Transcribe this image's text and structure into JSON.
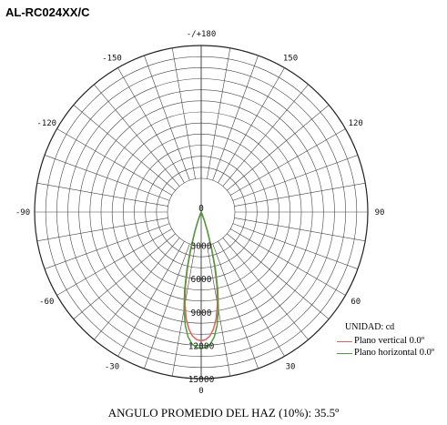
{
  "header": {
    "title": "AL-RC024XX/C"
  },
  "chart_data": {
    "type": "polar",
    "angle_labels": [
      "-/+180",
      "150",
      "120",
      "90",
      "60",
      "30",
      "0",
      "-30",
      "-60",
      "-90",
      "-120",
      "-150"
    ],
    "radial_ticks": [
      0,
      3000,
      6000,
      9000,
      12000,
      15000
    ],
    "radial_tick_labels": [
      "0",
      "3000",
      "6000",
      "9000",
      "12000",
      "15000"
    ],
    "r_max": 15000,
    "grid": true,
    "unit": "UNIDAD: cd",
    "series": [
      {
        "name": "Plano vertical 0.0º",
        "color": "#e0605a",
        "angles": [
          0,
          2,
          4,
          6,
          8,
          10,
          12,
          14,
          16,
          18,
          20,
          22,
          24,
          30,
          40
        ],
        "values": [
          11600,
          11500,
          11200,
          10600,
          9700,
          8400,
          6800,
          5000,
          3200,
          1800,
          900,
          350,
          150,
          40,
          0
        ]
      },
      {
        "name": "Plano horizontal 0.0º",
        "color": "#4a9f3a",
        "angles": [
          0,
          2,
          4,
          6,
          8,
          10,
          12,
          14,
          16,
          18,
          20,
          22,
          24,
          30,
          40
        ],
        "values": [
          12300,
          12200,
          11900,
          11300,
          10300,
          8900,
          7200,
          5300,
          3400,
          1900,
          950,
          380,
          160,
          40,
          0
        ]
      }
    ]
  },
  "footer": {
    "beam_angle_text": "ANGULO PROMEDIO DEL HAZ  (10%): 35.5º"
  }
}
